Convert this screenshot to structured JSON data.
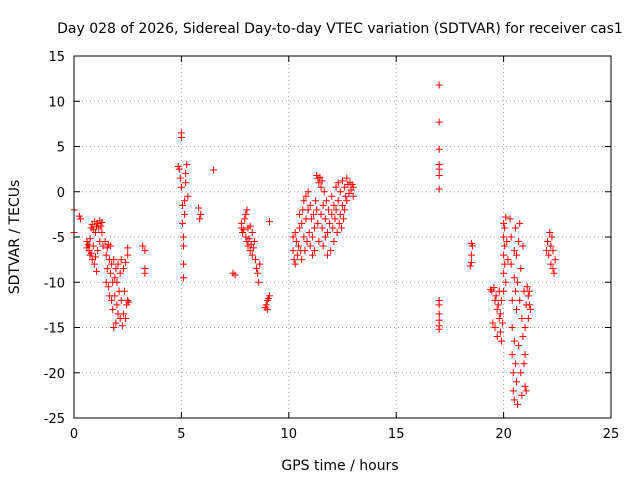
{
  "chart_data": {
    "type": "scatter",
    "title": "Day 028 of 2026, Sidereal Day-to-day VTEC variation (SDTVAR) for receiver cas1",
    "xlabel": "GPS time / hours",
    "ylabel": "SDTVAR / TECUs",
    "xlim": [
      0,
      25
    ],
    "ylim": [
      -25,
      15
    ],
    "xticks": [
      0,
      5,
      10,
      15,
      20,
      25
    ],
    "yticks": [
      -25,
      -20,
      -15,
      -10,
      -5,
      0,
      5,
      10,
      15
    ],
    "xtick_labels": [
      "0",
      "5",
      "10",
      "15",
      "20",
      "25"
    ],
    "ytick_labels": [
      "-25",
      "-20",
      "-15",
      "-10",
      "-5",
      "0",
      "5",
      "10",
      "15"
    ],
    "grid": true,
    "marker": "+",
    "color": "#ff0000",
    "series": [
      {
        "name": "SDTVAR",
        "points": [
          [
            0.0,
            -2.0
          ],
          [
            0.0,
            -4.5
          ],
          [
            0.25,
            -2.7
          ],
          [
            0.3,
            -3.0
          ],
          [
            0.6,
            -5.5
          ],
          [
            0.6,
            -6.2
          ],
          [
            0.65,
            -5.8
          ],
          [
            0.7,
            -6.5
          ],
          [
            0.7,
            -6.0
          ],
          [
            0.75,
            -7.0
          ],
          [
            0.75,
            -5.2
          ],
          [
            0.8,
            -6.8
          ],
          [
            0.8,
            -4.0
          ],
          [
            0.85,
            -7.5
          ],
          [
            0.85,
            -3.6
          ],
          [
            0.9,
            -6.0
          ],
          [
            0.9,
            -4.2
          ],
          [
            0.95,
            -8.0
          ],
          [
            0.95,
            -3.3
          ],
          [
            1.0,
            -7.2
          ],
          [
            1.0,
            -4.5
          ],
          [
            1.05,
            -8.8
          ],
          [
            1.05,
            -3.8
          ],
          [
            1.1,
            -6.5
          ],
          [
            1.1,
            -3.5
          ],
          [
            1.15,
            -4.0
          ],
          [
            1.2,
            -3.2
          ],
          [
            1.2,
            -5.5
          ],
          [
            1.25,
            -3.8
          ],
          [
            1.3,
            -3.4
          ],
          [
            1.3,
            -4.5
          ],
          [
            1.35,
            -6.0
          ],
          [
            1.45,
            -5.5
          ],
          [
            1.5,
            -7.0
          ],
          [
            1.5,
            -10.0
          ],
          [
            1.55,
            -8.5
          ],
          [
            1.55,
            -6.2
          ],
          [
            1.6,
            -10.5
          ],
          [
            1.6,
            -5.8
          ],
          [
            1.65,
            -7.5
          ],
          [
            1.65,
            -11.5
          ],
          [
            1.7,
            -9.0
          ],
          [
            1.7,
            -6.0
          ],
          [
            1.75,
            -12.0
          ],
          [
            1.75,
            -8.0
          ],
          [
            1.8,
            -10.0
          ],
          [
            1.8,
            -13.0
          ],
          [
            1.85,
            -7.5
          ],
          [
            1.85,
            -15.0
          ],
          [
            1.9,
            -11.5
          ],
          [
            1.9,
            -9.5
          ],
          [
            1.95,
            -14.5
          ],
          [
            1.95,
            -8.5
          ],
          [
            2.0,
            -12.5
          ],
          [
            2.0,
            -10.0
          ],
          [
            2.05,
            -13.5
          ],
          [
            2.05,
            -8.0
          ],
          [
            2.1,
            -11.0
          ],
          [
            2.15,
            -14.0
          ],
          [
            2.15,
            -9.0
          ],
          [
            2.2,
            -12.0
          ],
          [
            2.2,
            -7.5
          ],
          [
            2.25,
            -14.8
          ],
          [
            2.3,
            -13.5
          ],
          [
            2.3,
            -8.5
          ],
          [
            2.35,
            -11.0
          ],
          [
            2.4,
            -14.0
          ],
          [
            2.4,
            -7.8
          ],
          [
            2.45,
            -12.5
          ],
          [
            2.5,
            -12.0
          ],
          [
            2.5,
            -7.0
          ],
          [
            2.5,
            -6.2
          ],
          [
            2.55,
            -12.2
          ],
          [
            3.2,
            -6.0
          ],
          [
            3.3,
            -6.5
          ],
          [
            3.3,
            -8.5
          ],
          [
            3.3,
            -9.0
          ],
          [
            4.85,
            2.8
          ],
          [
            4.9,
            2.5
          ],
          [
            4.95,
            1.5
          ],
          [
            5.0,
            6.0
          ],
          [
            5.0,
            6.5
          ],
          [
            5.0,
            0.5
          ],
          [
            5.05,
            -1.5
          ],
          [
            5.05,
            -3.5
          ],
          [
            5.1,
            -5.0
          ],
          [
            5.1,
            -6.0
          ],
          [
            5.1,
            -8.0
          ],
          [
            5.1,
            -9.5
          ],
          [
            5.15,
            -2.5
          ],
          [
            5.15,
            -1.0
          ],
          [
            5.2,
            1.0
          ],
          [
            5.2,
            2.0
          ],
          [
            5.25,
            3.0
          ],
          [
            5.3,
            -0.5
          ],
          [
            5.8,
            -1.8
          ],
          [
            5.85,
            -3.0
          ],
          [
            5.9,
            -2.5
          ],
          [
            6.5,
            2.4
          ],
          [
            7.4,
            -9.0
          ],
          [
            7.5,
            -9.2
          ],
          [
            7.8,
            -4.0
          ],
          [
            7.8,
            -3.5
          ],
          [
            7.85,
            -4.5
          ],
          [
            7.9,
            -4.2
          ],
          [
            7.95,
            -3.0
          ],
          [
            8.0,
            -2.5
          ],
          [
            8.0,
            -5.0
          ],
          [
            8.05,
            -5.5
          ],
          [
            8.05,
            -2.0
          ],
          [
            8.1,
            -6.0
          ],
          [
            8.1,
            -4.0
          ],
          [
            8.15,
            -5.2
          ],
          [
            8.2,
            -6.5
          ],
          [
            8.2,
            -3.8
          ],
          [
            8.25,
            -5.8
          ],
          [
            8.3,
            -7.0
          ],
          [
            8.3,
            -4.5
          ],
          [
            8.35,
            -6.2
          ],
          [
            8.4,
            -5.5
          ],
          [
            8.45,
            -7.5
          ],
          [
            8.5,
            -8.5
          ],
          [
            8.55,
            -9.0
          ],
          [
            8.6,
            -10.0
          ],
          [
            8.65,
            -8.0
          ],
          [
            8.9,
            -12.8
          ],
          [
            8.95,
            -12.5
          ],
          [
            9.0,
            -13.0
          ],
          [
            9.0,
            -12.0
          ],
          [
            9.05,
            -11.8
          ],
          [
            9.1,
            -11.5
          ],
          [
            9.1,
            -3.3
          ],
          [
            10.2,
            -5.0
          ],
          [
            10.2,
            -6.5
          ],
          [
            10.25,
            -7.5
          ],
          [
            10.3,
            -4.5
          ],
          [
            10.3,
            -8.0
          ],
          [
            10.35,
            -5.5
          ],
          [
            10.4,
            -7.0
          ],
          [
            10.45,
            -6.0
          ],
          [
            10.5,
            -4.0
          ],
          [
            10.5,
            -2.5
          ],
          [
            10.55,
            -6.5
          ],
          [
            10.6,
            -3.5
          ],
          [
            10.6,
            -7.5
          ],
          [
            10.65,
            -2.0
          ],
          [
            10.7,
            -5.0
          ],
          [
            10.7,
            -1.0
          ],
          [
            10.75,
            -6.5
          ],
          [
            10.8,
            -0.5
          ],
          [
            10.8,
            -3.0
          ],
          [
            10.85,
            -5.5
          ],
          [
            10.9,
            0.0
          ],
          [
            10.9,
            -2.0
          ],
          [
            10.95,
            -4.5
          ],
          [
            11.0,
            -1.5
          ],
          [
            11.0,
            -6.0
          ],
          [
            11.05,
            -3.0
          ],
          [
            11.1,
            -5.0
          ],
          [
            11.1,
            -7.0
          ],
          [
            11.15,
            -2.5
          ],
          [
            11.2,
            -4.0
          ],
          [
            11.2,
            -6.5
          ],
          [
            11.25,
            -1.0
          ],
          [
            11.3,
            1.8
          ],
          [
            11.3,
            -2.0
          ],
          [
            11.35,
            1.5
          ],
          [
            11.35,
            -3.5
          ],
          [
            11.4,
            1.0
          ],
          [
            11.4,
            -5.5
          ],
          [
            11.45,
            1.6
          ],
          [
            11.5,
            0.5
          ],
          [
            11.5,
            -2.5
          ],
          [
            11.55,
            1.2
          ],
          [
            11.55,
            -4.0
          ],
          [
            11.6,
            -1.5
          ],
          [
            11.6,
            -6.0
          ],
          [
            11.65,
            0.0
          ],
          [
            11.7,
            -3.0
          ],
          [
            11.7,
            -5.0
          ],
          [
            11.75,
            -1.0
          ],
          [
            11.8,
            -4.5
          ],
          [
            11.8,
            -7.0
          ],
          [
            11.85,
            -2.0
          ],
          [
            11.9,
            -3.5
          ],
          [
            11.95,
            -6.5
          ],
          [
            12.0,
            -0.5
          ],
          [
            12.0,
            -2.5
          ],
          [
            12.05,
            -4.0
          ],
          [
            12.1,
            -1.5
          ],
          [
            12.1,
            -5.5
          ],
          [
            12.15,
            -3.0
          ],
          [
            12.2,
            0.5
          ],
          [
            12.2,
            -2.0
          ],
          [
            12.25,
            -4.5
          ],
          [
            12.3,
            1.0
          ],
          [
            12.3,
            -1.0
          ],
          [
            12.35,
            -3.5
          ],
          [
            12.4,
            0.0
          ],
          [
            12.4,
            -2.5
          ],
          [
            12.45,
            -4.0
          ],
          [
            12.5,
            1.2
          ],
          [
            12.5,
            -1.5
          ],
          [
            12.55,
            -3.0
          ],
          [
            12.6,
            0.5
          ],
          [
            12.6,
            -2.0
          ],
          [
            12.65,
            -0.5
          ],
          [
            12.7,
            1.5
          ],
          [
            12.7,
            -1.0
          ],
          [
            12.75,
            0.8
          ],
          [
            12.8,
            -0.2
          ],
          [
            12.85,
            1.0
          ],
          [
            12.9,
            0.2
          ],
          [
            12.95,
            0.8
          ],
          [
            13.0,
            0.5
          ],
          [
            13.0,
            -0.5
          ],
          [
            17.0,
            11.8
          ],
          [
            17.0,
            7.7
          ],
          [
            17.0,
            4.7
          ],
          [
            17.0,
            3.0
          ],
          [
            17.0,
            2.5
          ],
          [
            17.0,
            1.8
          ],
          [
            17.0,
            0.3
          ],
          [
            17.0,
            -12.0
          ],
          [
            17.0,
            -12.5
          ],
          [
            17.0,
            -13.5
          ],
          [
            17.0,
            -14.2
          ],
          [
            17.0,
            -14.8
          ],
          [
            17.0,
            -15.2
          ],
          [
            18.5,
            -5.7
          ],
          [
            18.55,
            -6.0
          ],
          [
            18.5,
            -7.0
          ],
          [
            18.5,
            -7.8
          ],
          [
            18.45,
            -8.2
          ],
          [
            19.4,
            -10.8
          ],
          [
            19.45,
            -11.0
          ],
          [
            19.5,
            -14.5
          ],
          [
            19.55,
            -10.6
          ],
          [
            19.6,
            -12.0
          ],
          [
            19.6,
            -15.0
          ],
          [
            19.65,
            -11.5
          ],
          [
            19.7,
            -13.0
          ],
          [
            19.7,
            -16.0
          ],
          [
            19.75,
            -12.5
          ],
          [
            19.8,
            -14.0
          ],
          [
            19.8,
            -11.0
          ],
          [
            19.85,
            -15.5
          ],
          [
            19.85,
            -13.5
          ],
          [
            19.9,
            -12.0
          ],
          [
            19.9,
            -16.5
          ],
          [
            19.95,
            -14.5
          ],
          [
            20.0,
            -3.5
          ],
          [
            20.0,
            -5.0
          ],
          [
            20.0,
            -7.0
          ],
          [
            20.0,
            -9.0
          ],
          [
            20.0,
            -11.0
          ],
          [
            20.05,
            -4.0
          ],
          [
            20.05,
            -6.0
          ],
          [
            20.05,
            -8.0
          ],
          [
            20.1,
            -2.8
          ],
          [
            20.1,
            -10.0
          ],
          [
            20.15,
            -5.5
          ],
          [
            20.2,
            -7.5
          ],
          [
            20.3,
            -3.0
          ],
          [
            20.35,
            -5.0
          ],
          [
            20.35,
            -8.0
          ],
          [
            20.4,
            -12.0
          ],
          [
            20.4,
            -15.0
          ],
          [
            20.4,
            -18.0
          ],
          [
            20.45,
            -20.0
          ],
          [
            20.45,
            -22.0
          ],
          [
            20.5,
            -6.5
          ],
          [
            20.5,
            -9.5
          ],
          [
            20.5,
            -16.5
          ],
          [
            20.5,
            -23.0
          ],
          [
            20.55,
            -4.0
          ],
          [
            20.55,
            -11.0
          ],
          [
            20.55,
            -19.0
          ],
          [
            20.6,
            -7.0
          ],
          [
            20.6,
            -13.0
          ],
          [
            20.6,
            -21.0
          ],
          [
            20.65,
            -23.5
          ],
          [
            20.65,
            -10.0
          ],
          [
            20.7,
            -5.5
          ],
          [
            20.7,
            -17.0
          ],
          [
            20.75,
            -3.5
          ],
          [
            20.75,
            -12.0
          ],
          [
            20.8,
            -8.5
          ],
          [
            20.8,
            -20.0
          ],
          [
            20.85,
            -14.0
          ],
          [
            20.85,
            -22.5
          ],
          [
            20.9,
            -6.0
          ],
          [
            20.9,
            -16.0
          ],
          [
            20.95,
            -11.0
          ],
          [
            20.95,
            -19.0
          ],
          [
            21.0,
            -18.0
          ],
          [
            21.0,
            -21.5
          ],
          [
            21.0,
            -15.0
          ],
          [
            21.05,
            -22.0
          ],
          [
            21.05,
            -12.5
          ],
          [
            21.1,
            -10.5
          ],
          [
            21.15,
            -11.5
          ],
          [
            21.15,
            -14.0
          ],
          [
            21.2,
            -12.5
          ],
          [
            21.2,
            -11.0
          ],
          [
            21.25,
            -13.0
          ],
          [
            22.0,
            -6.5
          ],
          [
            22.05,
            -5.5
          ],
          [
            22.1,
            -7.0
          ],
          [
            22.15,
            -4.5
          ],
          [
            22.2,
            -6.0
          ],
          [
            22.2,
            -8.0
          ],
          [
            22.25,
            -5.0
          ],
          [
            22.3,
            -6.5
          ],
          [
            22.3,
            -8.5
          ],
          [
            22.35,
            -9.0
          ],
          [
            22.4,
            -7.5
          ]
        ]
      }
    ]
  }
}
